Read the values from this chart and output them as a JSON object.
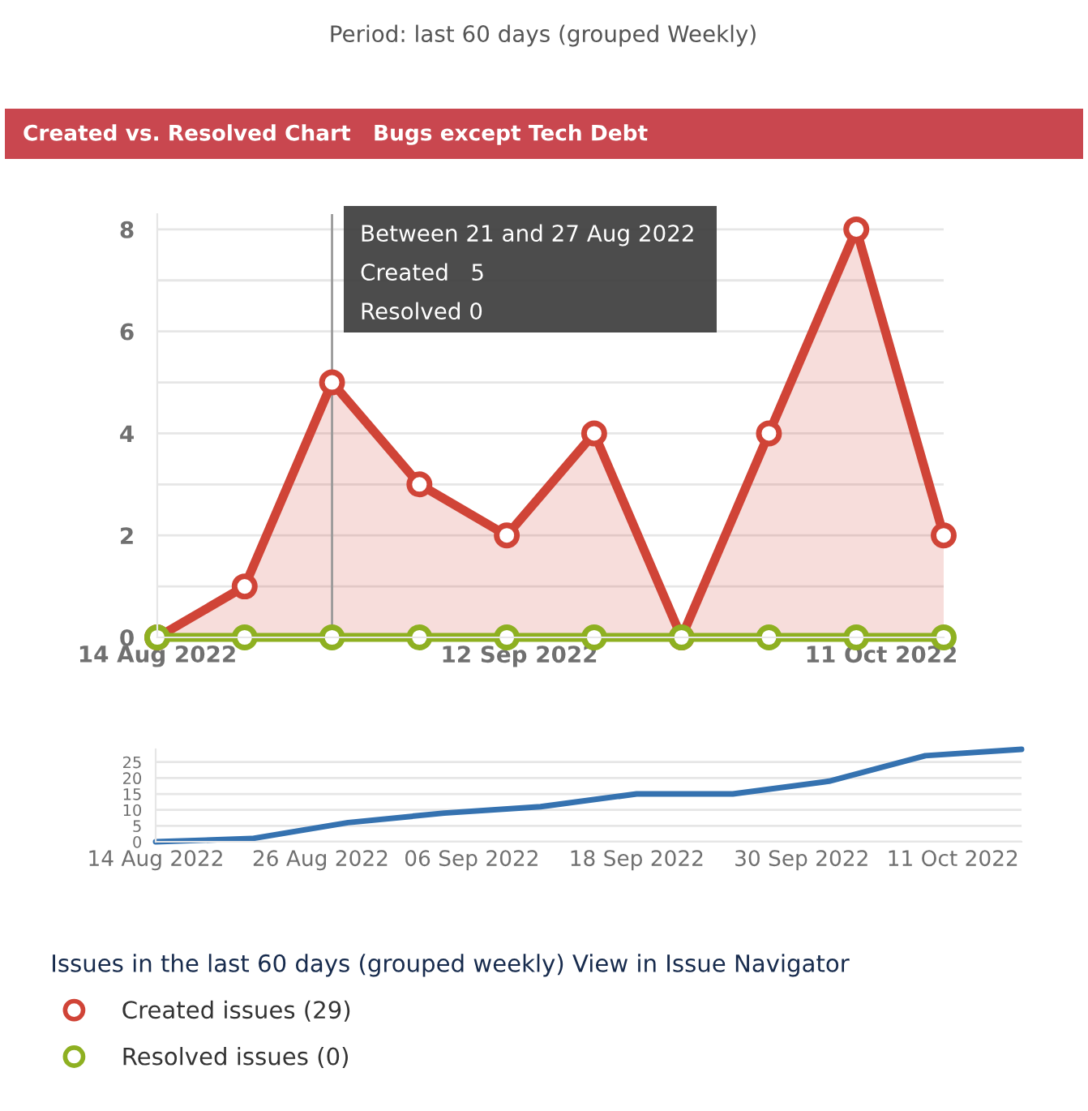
{
  "chart_data": [
    {
      "type": "area",
      "title": "Created vs. Resolved Chart",
      "subtitle": "Bugs except Tech Debt",
      "x": [
        "2022-08-14",
        "2022-08-21",
        "2022-08-28",
        "2022-09-04",
        "2022-09-11",
        "2022-09-18",
        "2022-09-25",
        "2022-10-02",
        "2022-10-09",
        "2022-10-16"
      ],
      "series": [
        {
          "name": "Created issues (29)",
          "color": "#d04437",
          "values": [
            0,
            1,
            5,
            3,
            2,
            4,
            0,
            4,
            8,
            2
          ]
        },
        {
          "name": "Resolved issues (0)",
          "type": "line",
          "color": "#8eb021",
          "values": [
            0,
            0,
            0,
            0,
            0,
            0,
            0,
            0,
            0,
            0
          ]
        }
      ],
      "xlim": [
        "2022-08-14",
        "2022-10-16"
      ],
      "xticks": [
        {
          "value": "2022-08-14",
          "label": "14 Aug 2022"
        },
        {
          "value": "2022-09-12",
          "label": "12 Sep 2022"
        },
        {
          "value": "2022-10-11",
          "label": "11 Oct 2022"
        }
      ],
      "ylim": [
        0,
        8.3
      ],
      "yticks": [
        0,
        {
          "value": 1,
          "label": null
        },
        2,
        {
          "value": 3,
          "label": null
        },
        4,
        {
          "value": 5,
          "label": null
        },
        6,
        {
          "value": 7,
          "label": null
        },
        8
      ],
      "ref_lines": [
        {
          "axis": "x",
          "value": "2022-08-28",
          "color": "#999999"
        }
      ],
      "annotations": [
        "Period: last 60 days (grouped Weekly)",
        "Between 21 and 27 Aug 2022",
        "Created   5",
        "Resolved 0"
      ],
      "legend_title": "Issues in the last 60 days (grouped weekly) View in Issue Navigator",
      "legend": "bottom",
      "grid": "y",
      "marker": "circle",
      "line_style": "solid"
    },
    {
      "type": "line",
      "x": [
        "2022-08-14",
        "2022-08-21",
        "2022-08-28",
        "2022-09-04",
        "2022-09-11",
        "2022-09-18",
        "2022-09-25",
        "2022-10-02",
        "2022-10-09",
        "2022-10-16"
      ],
      "series": [
        {
          "color": "#3572b0",
          "values": [
            0,
            1,
            6,
            9,
            11,
            15,
            15,
            19,
            27,
            29
          ]
        }
      ],
      "xlim": [
        "2022-08-14",
        "2022-10-16"
      ],
      "xticks": [
        {
          "value": "2022-08-14",
          "label": "14 Aug 2022"
        },
        {
          "value": "2022-08-26",
          "label": "26 Aug 2022"
        },
        {
          "value": "2022-09-06",
          "label": "06 Sep 2022"
        },
        {
          "value": "2022-09-18",
          "label": "18 Sep 2022"
        },
        {
          "value": "2022-09-30",
          "label": "30 Sep 2022"
        },
        {
          "value": "2022-10-11",
          "label": "11 Oct 2022"
        }
      ],
      "ylim": [
        0,
        29
      ],
      "yticks": [
        0,
        5,
        10,
        15,
        20,
        25
      ],
      "grid": "y",
      "marker": "none",
      "line_style": "solid"
    }
  ]
}
